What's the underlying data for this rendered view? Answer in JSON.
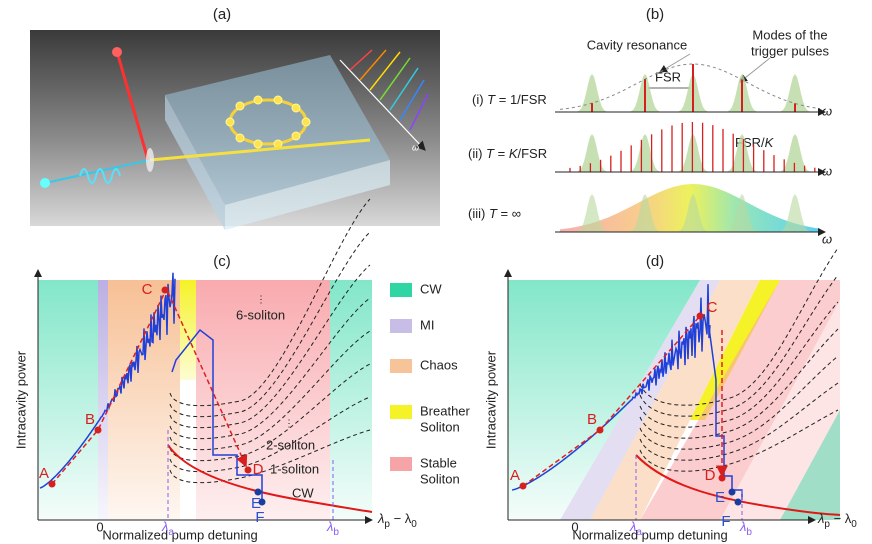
{
  "panel_a": {
    "label": "(a)",
    "axis": "ω"
  },
  "panel_b": {
    "label": "(b)",
    "cavity_resonance": "Cavity resonance",
    "trigger_modes": [
      "Modes of the",
      "trigger pulses"
    ],
    "fsr": "FSR",
    "fsr_k": [
      "FSR/",
      "K"
    ],
    "rows": [
      {
        "parts": [
          "(i) ",
          "T",
          " = 1/FSR"
        ],
        "axis": "ω"
      },
      {
        "parts": [
          "(ii) ",
          "T",
          " = ",
          "K",
          "/FSR"
        ],
        "axis": "ω"
      },
      {
        "parts": [
          "(iii) ",
          "T",
          " = ∞"
        ],
        "axis": "ω"
      }
    ]
  },
  "panel_c": {
    "label": "(c)",
    "y_label": "Intracavity power",
    "x_label": "Normalized pump detuning",
    "x_axis": [
      "λ",
      "p",
      " − λ",
      "0"
    ],
    "zero": "0",
    "lambda_a": [
      "λ",
      "a"
    ],
    "lambda_b": [
      "λ",
      "b"
    ],
    "points": [
      "A",
      "B",
      "C",
      "D",
      "E",
      "F"
    ],
    "soliton_labels": [
      "6-soliton",
      "2-soliton",
      "1-soliton"
    ],
    "cw": "CW"
  },
  "legend": [
    {
      "label": [
        "CW"
      ],
      "color": "#2fd6a4"
    },
    {
      "label": [
        "MI"
      ],
      "color": "#c7bde6"
    },
    {
      "label": [
        "Chaos"
      ],
      "color": "#f7c49a"
    },
    {
      "label": [
        "Breather",
        "Soliton"
      ],
      "color": "#f5f227"
    },
    {
      "label": [
        "Stable",
        "Soliton"
      ],
      "color": "#f7a4a8"
    }
  ],
  "panel_d": {
    "label": "(d)",
    "y_label": "Intracavity power",
    "x_label": "Normalized pump detuning",
    "x_axis": [
      "λ",
      "p",
      " − λ",
      "0"
    ],
    "zero": "0",
    "lambda_a": [
      "λ",
      "a"
    ],
    "lambda_b": [
      "λ",
      "b"
    ],
    "points": [
      "A",
      "B",
      "C",
      "D",
      "E",
      "F"
    ]
  }
}
